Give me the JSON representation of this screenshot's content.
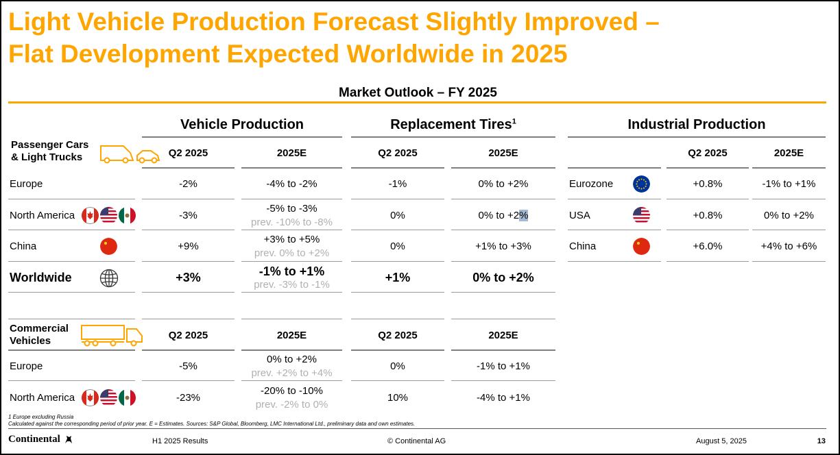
{
  "slide": {
    "title_line1": "Light Vehicle Production Forecast Slightly Improved –",
    "title_line2": "Flat Development Expected Worldwide in 2025",
    "subtitle": "Market Outlook – FY 2025"
  },
  "groups": {
    "vehicle_production": "Vehicle Production",
    "replacement_tires": "Replacement Tires",
    "replacement_tires_sup": "1",
    "industrial_production": "Industrial Production"
  },
  "columns": {
    "q2": "Q2 2025",
    "e": "2025E"
  },
  "passenger": {
    "label_line1": "Passenger Cars",
    "label_line2": "& Light Trucks",
    "rows": [
      {
        "region": "Europe",
        "vp_q2": "-2%",
        "vp_e": "-4% to -2%",
        "vp_prev": "",
        "rt_q2": "-1%",
        "rt_e": "0% to +2%"
      },
      {
        "region": "North America",
        "vp_q2": "-3%",
        "vp_e": "-5% to -3%",
        "vp_prev": "prev. -10% to -8%",
        "rt_q2": "0%",
        "rt_e_pre": "0% to +2",
        "rt_e_hl": "%"
      },
      {
        "region": "China",
        "vp_q2": "+9%",
        "vp_e": "+3% to +5%",
        "vp_prev": "prev. 0% to +2%",
        "rt_q2": "0%",
        "rt_e": "+1% to +3%"
      },
      {
        "region": "Worldwide",
        "vp_q2": "+3%",
        "vp_e": "-1% to +1%",
        "vp_prev": "prev. -3% to -1%",
        "rt_q2": "+1%",
        "rt_e": "0% to +2%"
      }
    ]
  },
  "commercial": {
    "label_line1": "Commercial",
    "label_line2": "Vehicles",
    "rows": [
      {
        "region": "Europe",
        "vp_q2": "-5%",
        "vp_e": "0% to +2%",
        "vp_prev": "prev. +2% to +4%",
        "rt_q2": "0%",
        "rt_e": "-1% to +1%"
      },
      {
        "region": "North America",
        "vp_q2": "-23%",
        "vp_e": "-20% to -10%",
        "vp_prev": "prev. -2% to 0%",
        "rt_q2": "10%",
        "rt_e": "-4% to +1%"
      }
    ]
  },
  "industrial": {
    "rows": [
      {
        "region": "Eurozone",
        "q2": "+0.8%",
        "e": "-1% to +1%"
      },
      {
        "region": "USA",
        "q2": "+0.8%",
        "e": "0% to +2%"
      },
      {
        "region": "China",
        "q2": "+6.0%",
        "e": "+4% to +6%"
      }
    ]
  },
  "footnotes": {
    "note1": "1 Europe excluding Russia",
    "note2": "Calculated against the corresponding period of prior year. E = Estimates. Sources: S&P Global, Bloomberg, LMC International Ltd., preliminary data and own estimates."
  },
  "footer": {
    "logo": "Continental",
    "doc": "H1 2025 Results",
    "copyright": "© Continental AG",
    "date": "August 5, 2025",
    "page": "13"
  },
  "icons": {
    "car": "car-icon",
    "truck": "truck-icon",
    "globe": "globe-icon",
    "flags": [
      "canada-flag-icon",
      "usa-flag-icon",
      "mexico-flag-icon",
      "china-flag-icon",
      "eu-flag-icon"
    ]
  },
  "colors": {
    "accent": "#ffa500",
    "rule": "#7f7f7f",
    "prev_text": "#b0b0b0",
    "highlight": "#a6b9d4"
  }
}
